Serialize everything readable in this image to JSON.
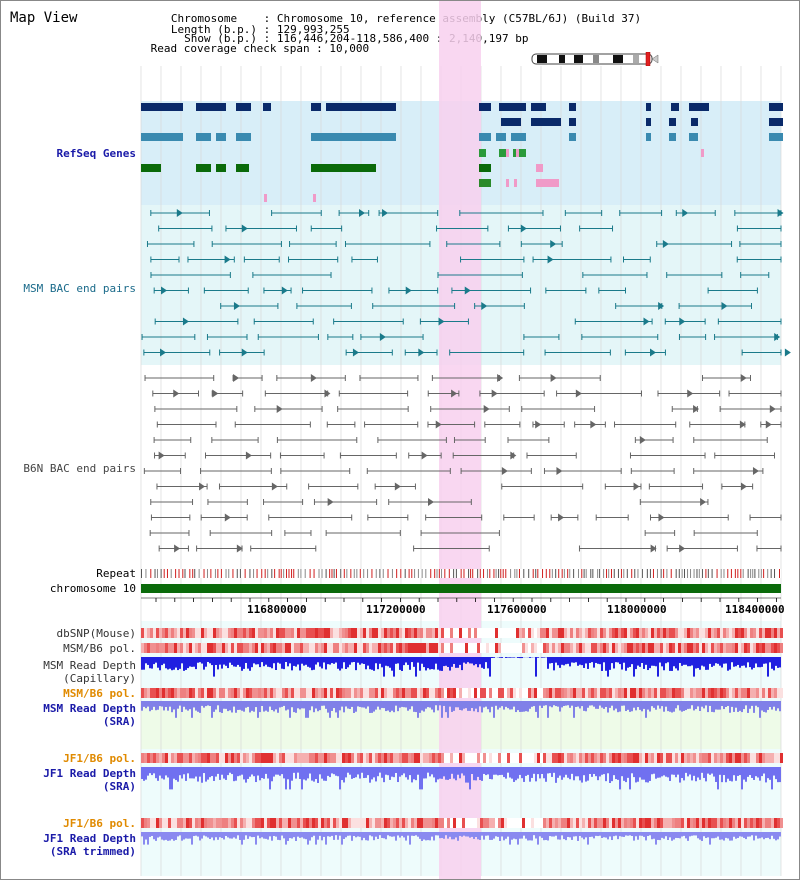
{
  "header": {
    "title": "Map View",
    "lines": [
      "   Chromosome    : Chromosome 10, reference assembly (C57BL/6J) (Build 37)",
      "   Length (b.p.) : 129,993,255",
      "     Show (b.p.) : 116,446,204-118,586,400 : 2,140,197 bp",
      " Read coverage check span : 10,000"
    ]
  },
  "labels": {
    "refseq": "RefSeq Genes",
    "msm_bac": "MSM BAC end pairs",
    "b6n_bac": "B6N BAC end pairs",
    "repeat": "Repeat",
    "chromosome": "chromosome 10",
    "dbsnp": "dbSNP(Mouse)",
    "msm_b6_pol": "MSM/B6 pol.",
    "msm_depth_cap_1": "MSM Read Depth",
    "msm_depth_cap_2": "(Capillary)",
    "msm_b6_pol2": "MSM/B6 pol.",
    "msm_depth_sra_1": "MSM Read Depth",
    "msm_depth_sra_2": "(SRA)",
    "jf1_b6_pol": "JF1/B6 pol.",
    "jf1_depth_sra_1": "JF1 Read Depth",
    "jf1_depth_sra_2": "(SRA)",
    "jf1_b6_pol2": "JF1/B6 pol.",
    "jf1_depth_trim_1": "JF1 Read Depth",
    "jf1_depth_trim_2": "(SRA trimmed)"
  },
  "axis": {
    "ticks": [
      "116800000",
      "117200000",
      "117600000",
      "118000000",
      "118400000"
    ]
  },
  "colors": {
    "refseq_bg": "#d8eef8",
    "msm_bg": "#e4f6f8",
    "highlight": "#f8d0ee",
    "chrom_bar": "#0a6a0a",
    "label_blue": "#1a1aa8",
    "label_teal": "#1a6a8a",
    "label_orange": "#e08a00"
  }
}
